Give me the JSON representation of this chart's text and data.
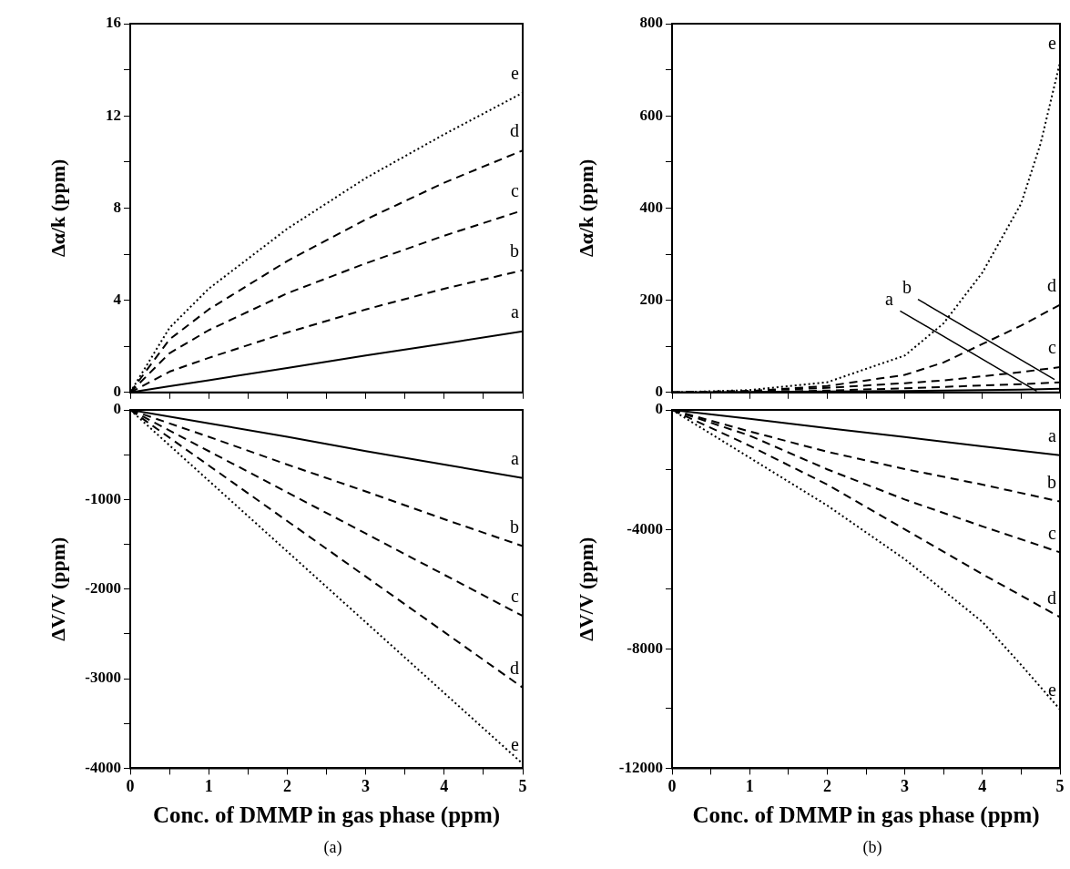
{
  "chart_data": [
    {
      "type": "line",
      "ylabel": "Δα/k (ppm)",
      "xlim": [
        0,
        5
      ],
      "xticks": [
        {
          "value": 0,
          "label": null
        },
        {
          "value": 0.5,
          "label": null
        },
        {
          "value": 1,
          "label": null
        },
        {
          "value": 1.5,
          "label": null
        },
        {
          "value": 2,
          "label": null
        },
        {
          "value": 2.5,
          "label": null
        },
        {
          "value": 3,
          "label": null
        },
        {
          "value": 3.5,
          "label": null
        },
        {
          "value": 4,
          "label": null
        },
        {
          "value": 4.5,
          "label": null
        },
        {
          "value": 5,
          "label": null
        }
      ],
      "ylim": [
        0,
        16
      ],
      "yticks": [
        0,
        {
          "value": 2,
          "label": null
        },
        4,
        {
          "value": 6,
          "label": null
        },
        8,
        {
          "value": 10,
          "label": null
        },
        12,
        {
          "value": 14,
          "label": null
        },
        16
      ],
      "tick_labels": "y",
      "grid": false,
      "x": [
        0,
        0.5,
        1,
        2,
        3,
        4,
        5
      ],
      "series": [
        {
          "name": "a",
          "color": "#000000",
          "line_style": "solid",
          "values": [
            0,
            0.27,
            0.53,
            1.06,
            1.6,
            2.12,
            2.65
          ]
        },
        {
          "name": "b",
          "color": "#000000",
          "line_style": "dashed",
          "values": [
            0,
            0.9,
            1.5,
            2.6,
            3.6,
            4.5,
            5.3
          ]
        },
        {
          "name": "c",
          "color": "#000000",
          "line_style": "dashed",
          "values": [
            0,
            1.7,
            2.7,
            4.3,
            5.6,
            6.8,
            7.9
          ]
        },
        {
          "name": "d",
          "color": "#000000",
          "line_style": "dashed",
          "values": [
            0,
            2.3,
            3.6,
            5.7,
            7.5,
            9.1,
            10.5
          ]
        },
        {
          "name": "e",
          "color": "#000000",
          "line_style": "dotted",
          "values": [
            0,
            2.8,
            4.5,
            7.1,
            9.3,
            11.2,
            13
          ]
        }
      ]
    },
    {
      "type": "line",
      "xlabel": "Conc. of DMMP in gas phase (ppm)",
      "ylabel": "ΔV/V (ppm)",
      "annotations": [
        "(a)"
      ],
      "xlim": [
        0,
        5
      ],
      "xticks": [
        0,
        {
          "value": 0.5,
          "label": null
        },
        1,
        {
          "value": 1.5,
          "label": null
        },
        2,
        {
          "value": 2.5,
          "label": null
        },
        3,
        {
          "value": 3.5,
          "label": null
        },
        4,
        {
          "value": 4.5,
          "label": null
        },
        5
      ],
      "ylim": [
        -4000,
        0
      ],
      "yticks": [
        0,
        {
          "value": -500,
          "label": null
        },
        -1000,
        {
          "value": -1500,
          "label": null
        },
        -2000,
        {
          "value": -2500,
          "label": null
        },
        -3000,
        {
          "value": -3500,
          "label": null
        },
        -4000
      ],
      "grid": false,
      "x": [
        0,
        1,
        2,
        3,
        4,
        5
      ],
      "series": [
        {
          "name": "a",
          "color": "#000000",
          "line_style": "solid",
          "values": [
            0,
            -150,
            -300,
            -460,
            -610,
            -760
          ]
        },
        {
          "name": "b",
          "color": "#000000",
          "line_style": "dashed",
          "values": [
            0,
            -300,
            -610,
            -910,
            -1220,
            -1520
          ]
        },
        {
          "name": "c",
          "color": "#000000",
          "line_style": "dashed",
          "values": [
            0,
            -460,
            -920,
            -1380,
            -1840,
            -2300
          ]
        },
        {
          "name": "d",
          "color": "#000000",
          "line_style": "dashed",
          "values": [
            0,
            -620,
            -1240,
            -1860,
            -2480,
            -3100
          ]
        },
        {
          "name": "e",
          "color": "#000000",
          "line_style": "dotted",
          "values": [
            0,
            -790,
            -1580,
            -2370,
            -3160,
            -3950
          ]
        }
      ]
    },
    {
      "type": "line",
      "ylabel": "Δα/k (ppm)",
      "annotations": [
        {
          "text": "a",
          "x": 4.7,
          "y": 3
        },
        {
          "text": "b",
          "x": 4.93,
          "y": 28
        }
      ],
      "xlim": [
        0,
        5
      ],
      "xticks": [
        {
          "value": 0,
          "label": null
        },
        {
          "value": 0.5,
          "label": null
        },
        {
          "value": 1,
          "label": null
        },
        {
          "value": 1.5,
          "label": null
        },
        {
          "value": 2,
          "label": null
        },
        {
          "value": 2.5,
          "label": null
        },
        {
          "value": 3,
          "label": null
        },
        {
          "value": 3.5,
          "label": null
        },
        {
          "value": 4,
          "label": null
        },
        {
          "value": 4.5,
          "label": null
        },
        {
          "value": 5,
          "label": null
        }
      ],
      "ylim": [
        0,
        800
      ],
      "yticks": [
        0,
        {
          "value": 100,
          "label": null
        },
        200,
        {
          "value": 300,
          "label": null
        },
        400,
        {
          "value": 500,
          "label": null
        },
        600,
        {
          "value": 700,
          "label": null
        },
        800
      ],
      "tick_labels": "y",
      "grid": false,
      "x": [
        0,
        1,
        2,
        3,
        3.5,
        4,
        4.5,
        5
      ],
      "series": [
        {
          "color": "#000000",
          "line_style": "solid",
          "values": [
            0,
            1,
            2,
            3,
            4,
            5,
            6,
            8
          ]
        },
        {
          "color": "#000000",
          "line_style": "dashed",
          "values": [
            0,
            1,
            4,
            9,
            12,
            15,
            18,
            22
          ]
        },
        {
          "name": "c",
          "color": "#000000",
          "line_style": "dashed",
          "values": [
            0,
            3,
            10,
            20,
            26,
            35,
            44,
            55
          ]
        },
        {
          "name": "d",
          "color": "#000000",
          "line_style": "dashed",
          "values": [
            0,
            3,
            14,
            38,
            65,
            105,
            145,
            190
          ]
        },
        {
          "name": "e",
          "color": "#000000",
          "line_style": "dotted",
          "x": [
            0,
            1,
            2,
            3,
            3.5,
            4,
            4.5,
            4.75,
            5
          ],
          "values": [
            0,
            5,
            22,
            80,
            150,
            260,
            410,
            540,
            716
          ]
        }
      ]
    },
    {
      "type": "line",
      "xlabel": "Conc. of DMMP in gas phase (ppm)",
      "ylabel": "ΔV/V (ppm)",
      "annotations": [
        "(b)"
      ],
      "xlim": [
        0,
        5
      ],
      "xticks": [
        0,
        {
          "value": 0.5,
          "label": null
        },
        1,
        {
          "value": 1.5,
          "label": null
        },
        2,
        {
          "value": 2.5,
          "label": null
        },
        3,
        {
          "value": 3.5,
          "label": null
        },
        4,
        {
          "value": 4.5,
          "label": null
        },
        5
      ],
      "ylim": [
        -12000,
        0
      ],
      "yticks": [
        0,
        {
          "value": -2000,
          "label": null
        },
        -4000,
        {
          "value": -6000,
          "label": null
        },
        -8000,
        {
          "value": -10000,
          "label": null
        },
        -12000
      ],
      "grid": false,
      "x": [
        0,
        1,
        2,
        3,
        4,
        5
      ],
      "series": [
        {
          "name": "a",
          "color": "#000000",
          "line_style": "solid",
          "values": [
            0,
            -300,
            -610,
            -910,
            -1220,
            -1520
          ]
        },
        {
          "name": "b",
          "color": "#000000",
          "line_style": "dashed",
          "values": [
            0,
            -720,
            -1400,
            -1980,
            -2500,
            -3070
          ]
        },
        {
          "name": "c",
          "color": "#000000",
          "line_style": "dashed",
          "values": [
            0,
            -860,
            -1990,
            -3000,
            -3900,
            -4770
          ]
        },
        {
          "name": "d",
          "color": "#000000",
          "line_style": "dashed",
          "values": [
            0,
            -1200,
            -2500,
            -4000,
            -5500,
            -6940
          ]
        },
        {
          "name": "e",
          "color": "#000000",
          "line_style": "dotted",
          "x": [
            0,
            1,
            2,
            3,
            4,
            4.5,
            5
          ],
          "values": [
            0,
            -1600,
            -3200,
            -5000,
            -7100,
            -8540,
            -10030
          ]
        }
      ]
    }
  ]
}
